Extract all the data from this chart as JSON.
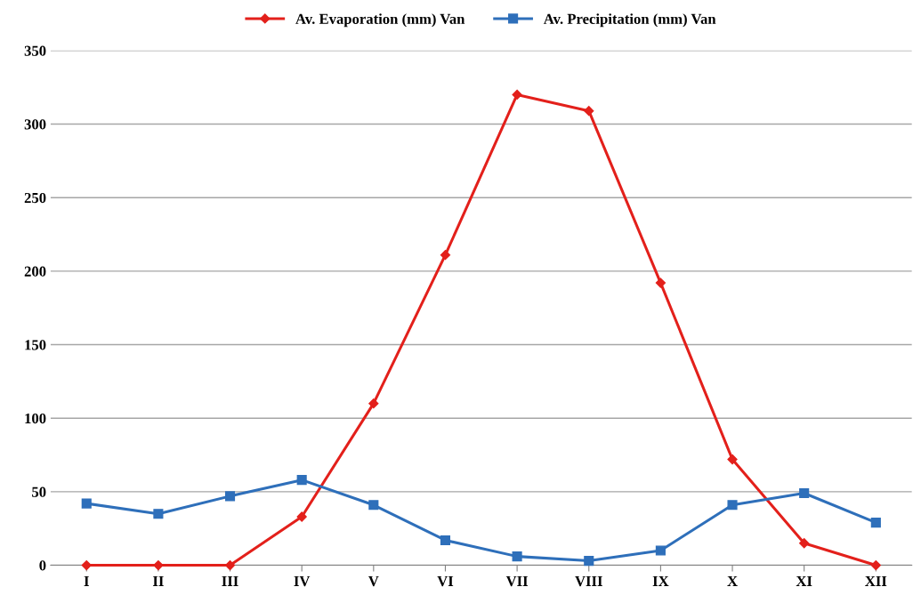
{
  "chart_data": {
    "type": "line",
    "categories": [
      "I",
      "II",
      "III",
      "IV",
      "V",
      "VI",
      "VII",
      "VIII",
      "IX",
      "X",
      "XI",
      "XII"
    ],
    "series": [
      {
        "name": "Av. Evaporation (mm) Van",
        "color": "#e3201b",
        "marker": "diamond",
        "values": [
          0,
          0,
          0,
          33,
          110,
          211,
          320,
          309,
          192,
          72,
          15,
          0
        ]
      },
      {
        "name": "Av. Precipitation (mm) Van",
        "color": "#2e6fba",
        "marker": "square",
        "values": [
          42,
          35,
          47,
          58,
          41,
          17,
          6,
          3,
          10,
          41,
          49,
          29
        ]
      }
    ],
    "ylim": [
      0,
      350
    ],
    "yticks": [
      0,
      50,
      100,
      150,
      200,
      250,
      300,
      350
    ],
    "grid": "y",
    "legend": "top",
    "line_style": "solid"
  }
}
